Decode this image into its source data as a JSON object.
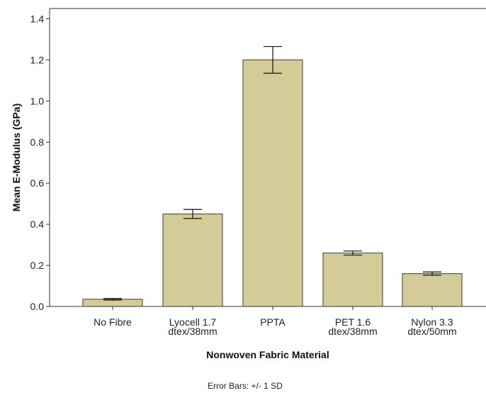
{
  "chart_data": {
    "type": "bar",
    "categories": [
      [
        "No Fibre"
      ],
      [
        "Lyocell 1.7",
        "dtex/38mm"
      ],
      [
        "PPTA"
      ],
      [
        "PET 1.6",
        "dtex/38mm"
      ],
      [
        "Nylon 3.3",
        "dtex/50mm"
      ]
    ],
    "values": [
      0.035,
      0.45,
      1.2,
      0.26,
      0.16
    ],
    "error": [
      0.004,
      0.022,
      0.065,
      0.01,
      0.008
    ],
    "xlabel": "Nonwoven Fabric Material",
    "ylabel": "Mean E-Modulus (GPa)",
    "ylim": [
      0,
      1.45
    ],
    "yticks": [
      "0.0",
      "0.2",
      "0.4",
      "0.6",
      "0.8",
      "1.0",
      "1.2",
      "1.4"
    ],
    "grid": false,
    "footnote": "Error Bars: +/- 1 SD",
    "colors": {
      "bar_fill": "#d3cc98",
      "bar_stroke": "#3a3a3a",
      "axis": "#333333",
      "error_bar": "#111111"
    }
  }
}
